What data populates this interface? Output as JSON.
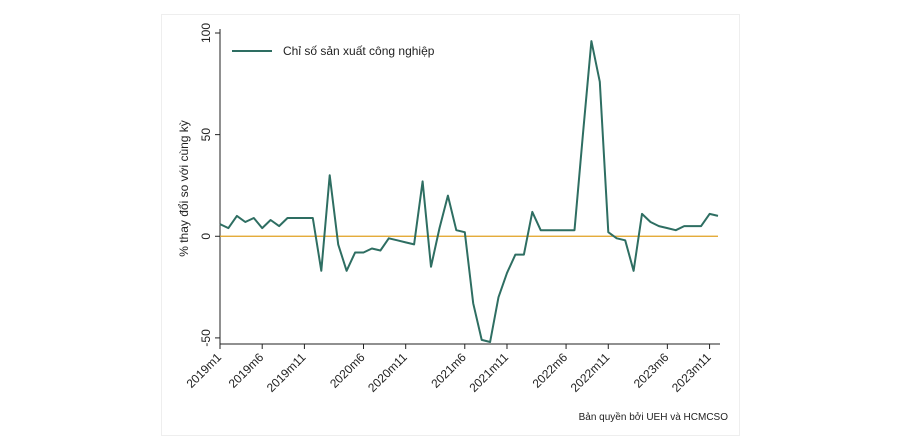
{
  "chart_data": {
    "type": "line",
    "ylabel": "% thay đổi so với cùng kỳ",
    "ylim": [
      -53,
      100
    ],
    "yticks": [
      -50,
      0,
      50,
      100
    ],
    "xtick_labels": [
      "2019m1",
      "2019m6",
      "2019m11",
      "2020m6",
      "2020m11",
      "2021m6",
      "2021m11",
      "2022m6",
      "2022m11",
      "2023m6",
      "2023m11"
    ],
    "legend_position": "top-left",
    "grid": false,
    "reference_line": {
      "y": 0,
      "color": "#e0a020"
    },
    "series": [
      {
        "name": "Chỉ số sản xuất công nghiệp",
        "color": "#2e6e62",
        "x": [
          "2019m1",
          "2019m2",
          "2019m3",
          "2019m4",
          "2019m5",
          "2019m6",
          "2019m7",
          "2019m8",
          "2019m9",
          "2019m10",
          "2019m11",
          "2019m12",
          "2020m1",
          "2020m2",
          "2020m3",
          "2020m4",
          "2020m5",
          "2020m6",
          "2020m7",
          "2020m8",
          "2020m9",
          "2020m10",
          "2020m11",
          "2020m12",
          "2021m1",
          "2021m2",
          "2021m3",
          "2021m4",
          "2021m5",
          "2021m6",
          "2021m7",
          "2021m8",
          "2021m9",
          "2021m10",
          "2021m11",
          "2021m12",
          "2022m1",
          "2022m2",
          "2022m3",
          "2022m4",
          "2022m5",
          "2022m6",
          "2022m7",
          "2022m8",
          "2022m9",
          "2022m10",
          "2022m11",
          "2022m12",
          "2023m1",
          "2023m2",
          "2023m3",
          "2023m4",
          "2023m5",
          "2023m6",
          "2023m7",
          "2023m8",
          "2023m9",
          "2023m10",
          "2023m11",
          "2023m12"
        ],
        "values": [
          6,
          4,
          10,
          7,
          9,
          4,
          8,
          5,
          9,
          9,
          9,
          9,
          -17,
          30,
          -4,
          -17,
          -8,
          -8,
          -6,
          -7,
          -1,
          -2,
          -3,
          -4,
          27,
          -15,
          4,
          20,
          3,
          2,
          -33,
          -51,
          -52,
          -30,
          -18,
          -9,
          -9,
          12,
          3,
          3,
          3,
          3,
          3,
          50,
          96,
          76,
          2,
          -1,
          -2,
          -17,
          11,
          7,
          5,
          4,
          3,
          5,
          5,
          5,
          11,
          10
        ]
      }
    ]
  },
  "credit": "Bản quyền bởi UEH và HCMCSO"
}
